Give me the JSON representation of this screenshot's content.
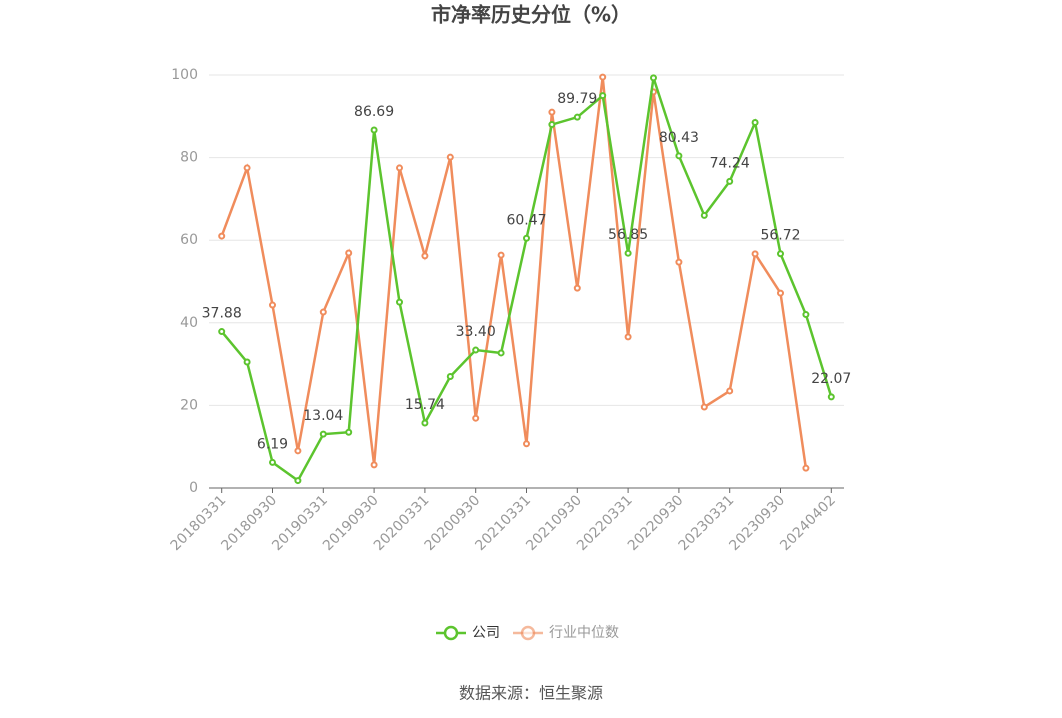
{
  "chart_data": {
    "type": "line",
    "title": "市净率历史分位（%）",
    "categories": [
      "20180331",
      null,
      "20180930",
      null,
      "20190331",
      null,
      "20190930",
      null,
      "20200331",
      null,
      "20200930",
      null,
      "20210331",
      null,
      "20210930",
      null,
      "20220331",
      null,
      "20220930",
      null,
      "20230331",
      null,
      "20230930",
      null,
      "20240402"
    ],
    "series": [
      {
        "name": "公司",
        "color": "#5cc42e",
        "values": [
          37.88,
          30.5,
          6.19,
          1.8,
          13.04,
          13.5,
          86.69,
          45.0,
          15.74,
          27.0,
          33.4,
          32.7,
          60.47,
          88.0,
          89.79,
          95.0,
          56.85,
          99.3,
          80.43,
          66.0,
          74.24,
          88.5,
          56.72,
          42.0,
          22.07
        ],
        "value_labels": [
          "37.88",
          null,
          "6.19",
          null,
          "13.04",
          null,
          "86.69",
          null,
          "15.74",
          null,
          "33.40",
          null,
          "60.47",
          null,
          "89.79",
          null,
          "56.85",
          null,
          "80.43",
          null,
          "74.24",
          null,
          "56.72",
          null,
          "22.07"
        ]
      },
      {
        "name": "行业中位数",
        "color": "#f08c5c",
        "values": [
          61.0,
          77.5,
          44.3,
          9.0,
          42.6,
          56.9,
          5.6,
          77.5,
          56.2,
          80.1,
          16.9,
          56.4,
          10.7,
          91.0,
          48.4,
          99.5,
          36.6,
          95.9,
          54.7,
          19.6,
          23.5,
          56.7,
          47.2,
          4.8,
          null
        ]
      }
    ],
    "ylim": [
      0,
      100
    ],
    "yticks": [
      0,
      20,
      40,
      60,
      80,
      100
    ],
    "grid": true,
    "source": "数据来源：恒生聚源"
  }
}
